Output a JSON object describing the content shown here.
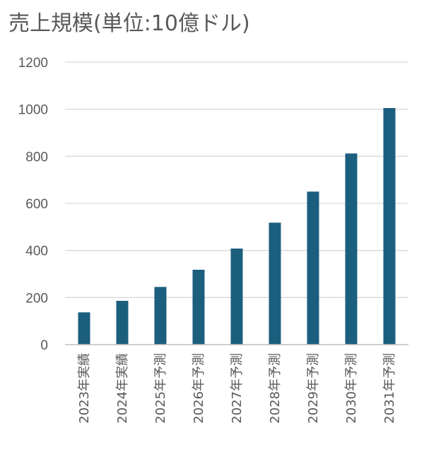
{
  "chart_data": {
    "type": "bar",
    "title": "売上規模(単位:10億ドル)",
    "categories": [
      "2023年実績",
      "2024年実績",
      "2025年予測",
      "2026年予測",
      "2027年予測",
      "2028年予測",
      "2029年予測",
      "2030年予測",
      "2031年予測"
    ],
    "values": [
      137,
      186,
      245,
      318,
      408,
      518,
      650,
      812,
      1005
    ],
    "ylim": [
      0,
      1200
    ],
    "yticks": [
      0,
      200,
      400,
      600,
      800,
      1000,
      1200
    ],
    "grid": true,
    "legend": "none",
    "bar_color": "#1b5e7e",
    "grid_color": "#d9d9d9",
    "axis_color": "#bfbfbf"
  }
}
